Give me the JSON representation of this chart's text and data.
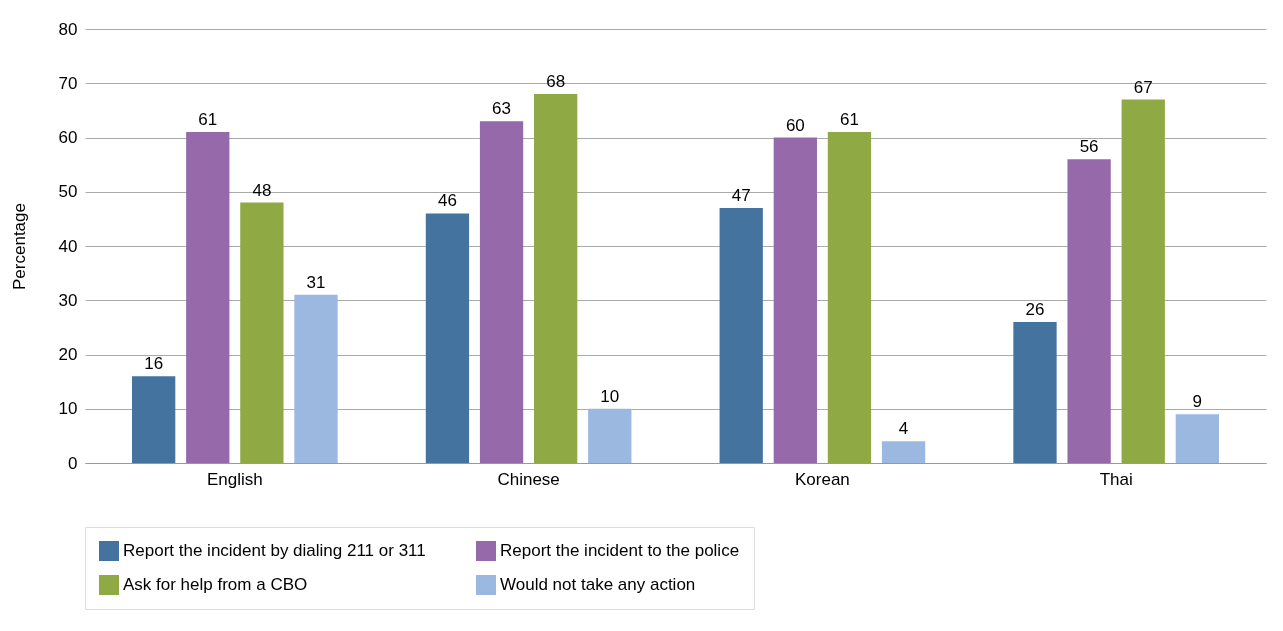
{
  "chart_data": {
    "type": "bar",
    "ylabel": "Percentage",
    "categories": [
      "English",
      "Chinese",
      "Korean",
      "Thai"
    ],
    "series": [
      {
        "name": "Report the incident by dialing 211 or 311",
        "color": "#44739f",
        "values": [
          16,
          46,
          47,
          26
        ]
      },
      {
        "name": "Report the incident to the police",
        "color": "#9669ab",
        "values": [
          61,
          63,
          60,
          56
        ]
      },
      {
        "name": "Ask for help from a CBO",
        "color": "#8fa944",
        "values": [
          48,
          68,
          61,
          67
        ]
      },
      {
        "name": "Would not take any action",
        "color": "#9ab8e0",
        "values": [
          31,
          10,
          4,
          9
        ]
      }
    ],
    "ylim": [
      0,
      80
    ],
    "yticks": [
      0,
      10,
      20,
      30,
      40,
      50,
      60,
      70,
      80
    ],
    "grid": "y",
    "legend": "bottom",
    "data_labels": true
  }
}
